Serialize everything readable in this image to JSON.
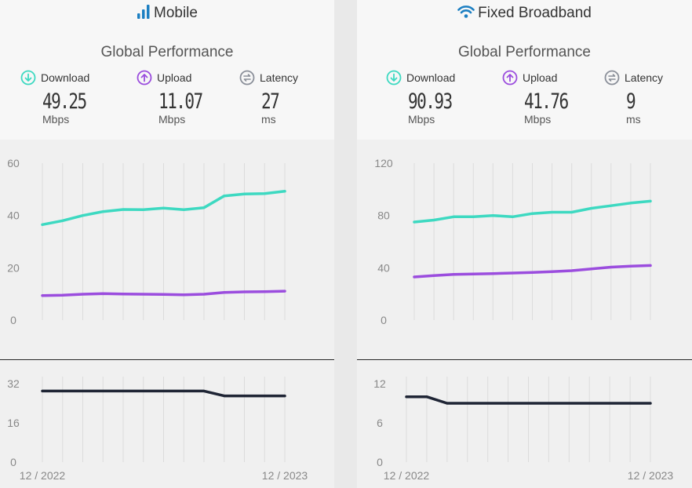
{
  "panels": [
    {
      "id": "mobile",
      "title": "Mobile",
      "subtitle": "Global Performance",
      "metrics": [
        {
          "label": "Download",
          "value": "49.25",
          "unit": "Mbps",
          "icon": "download-icon",
          "color": "#3dd9c1"
        },
        {
          "label": "Upload",
          "value": "11.07",
          "unit": "Mbps",
          "icon": "upload-icon",
          "color": "#9b4dde"
        },
        {
          "label": "Latency",
          "value": "27",
          "unit": "ms",
          "icon": "latency-icon",
          "color": "#8a8f99"
        }
      ],
      "x_start_label": "12 / 2022",
      "x_end_label": "12 / 2023"
    },
    {
      "id": "fixed",
      "title": "Fixed Broadband",
      "subtitle": "Global Performance",
      "metrics": [
        {
          "label": "Download",
          "value": "90.93",
          "unit": "Mbps",
          "icon": "download-icon",
          "color": "#3dd9c1"
        },
        {
          "label": "Upload",
          "value": "41.76",
          "unit": "Mbps",
          "icon": "upload-icon",
          "color": "#9b4dde"
        },
        {
          "label": "Latency",
          "value": "9",
          "unit": "ms",
          "icon": "latency-icon",
          "color": "#8a8f99"
        }
      ],
      "x_start_label": "12 / 2022",
      "x_end_label": "12 / 2023"
    }
  ],
  "chart_data": [
    {
      "type": "line",
      "panel": "Mobile",
      "x": [
        "12 / 2022",
        "",
        "",
        "",
        "",
        "",
        "",
        "",
        "",
        "",
        "",
        "",
        "12 / 2023"
      ],
      "yticks": [
        "0",
        "20",
        "40",
        "60"
      ],
      "ylim": [
        0,
        60
      ],
      "grid": "vertical",
      "series": [
        {
          "name": "Download",
          "color": "#3dd9c1",
          "values": [
            36.5,
            38,
            40,
            41.5,
            42.3,
            42.2,
            42.8,
            42.2,
            43,
            47.5,
            48.2,
            48.4,
            49.25
          ]
        },
        {
          "name": "Upload",
          "color": "#9b4dde",
          "values": [
            9.4,
            9.5,
            9.9,
            10.1,
            10.0,
            9.9,
            9.8,
            9.7,
            9.9,
            10.6,
            10.8,
            10.9,
            11.07
          ]
        }
      ]
    },
    {
      "type": "line",
      "panel": "Mobile",
      "x": [
        "12 / 2022",
        "",
        "",
        "",
        "",
        "",
        "",
        "",
        "",
        "",
        "",
        "",
        "12 / 2023"
      ],
      "yticks": [
        "0",
        "16",
        "32"
      ],
      "ylim": [
        0,
        32
      ],
      "grid": "vertical",
      "series": [
        {
          "name": "Latency",
          "color": "#1f2535",
          "values": [
            29,
            29,
            29,
            29,
            29,
            29,
            29,
            29,
            29,
            27,
            27,
            27,
            27
          ]
        }
      ]
    },
    {
      "type": "line",
      "panel": "Fixed Broadband",
      "x": [
        "12 / 2022",
        "",
        "",
        "",
        "",
        "",
        "",
        "",
        "",
        "",
        "",
        "",
        "12 / 2023"
      ],
      "yticks": [
        "0",
        "40",
        "80",
        "120"
      ],
      "ylim": [
        0,
        120
      ],
      "grid": "vertical",
      "series": [
        {
          "name": "Download",
          "color": "#3dd9c1",
          "values": [
            75,
            76.5,
            79,
            79,
            80,
            79,
            81.5,
            82.5,
            82.5,
            85.5,
            87.5,
            89.5,
            90.93
          ]
        },
        {
          "name": "Upload",
          "color": "#9b4dde",
          "values": [
            33,
            34,
            35,
            35.3,
            35.6,
            36,
            36.5,
            37,
            37.8,
            39.2,
            40.5,
            41.2,
            41.76
          ]
        }
      ]
    },
    {
      "type": "line",
      "panel": "Fixed Broadband",
      "x": [
        "12 / 2022",
        "",
        "",
        "",
        "",
        "",
        "",
        "",
        "",
        "",
        "",
        "",
        "12 / 2023"
      ],
      "yticks": [
        "0",
        "6",
        "12"
      ],
      "ylim": [
        0,
        12
      ],
      "grid": "vertical",
      "series": [
        {
          "name": "Latency",
          "color": "#1f2535",
          "values": [
            10,
            10,
            9,
            9,
            9,
            9,
            9,
            9,
            9,
            9,
            9,
            9,
            9
          ]
        }
      ]
    }
  ]
}
